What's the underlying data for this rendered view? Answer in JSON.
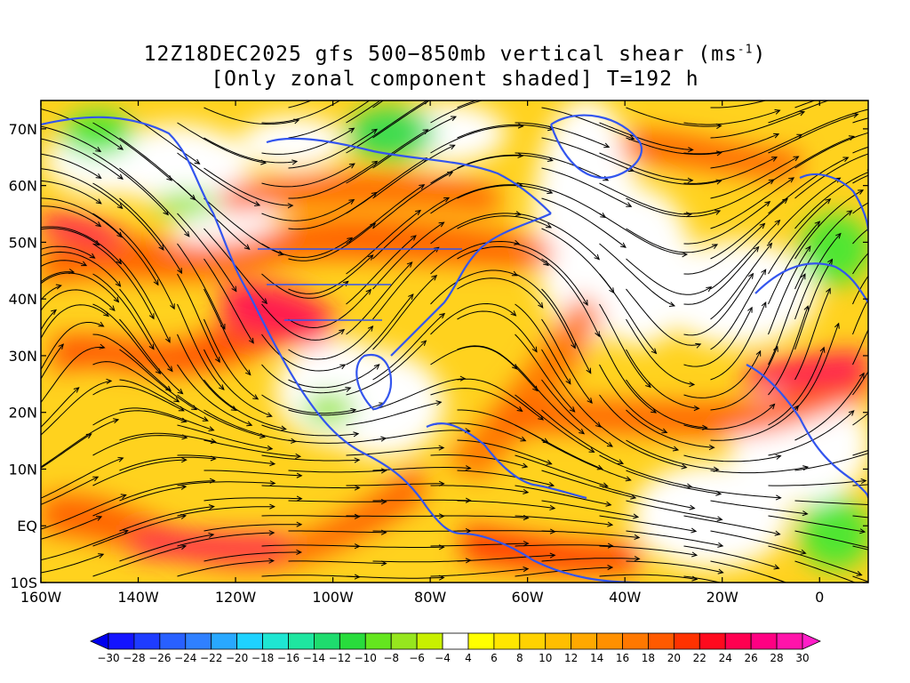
{
  "title": {
    "line1_prefix": "12Z18DEC2025 gfs 500−850mb vertical shear (ms",
    "line1_unit_exp": "-1",
    "line1_suffix": ")",
    "line2": "[Only zonal component shaded] T=192 h"
  },
  "map": {
    "lon_range": [
      -160,
      10
    ],
    "lat_range": [
      -10,
      75
    ],
    "lat_labels": [
      "70N",
      "60N",
      "50N",
      "40N",
      "30N",
      "20N",
      "10N",
      "EQ",
      "10S"
    ],
    "lon_labels": [
      "160W",
      "140W",
      "120W",
      "100W",
      "80W",
      "60W",
      "40W",
      "20W",
      "0"
    ],
    "projection": "cylindrical equidistant",
    "coastline_color": "#3355ee"
  },
  "colorbar": {
    "levels": [
      -30,
      -28,
      -26,
      -24,
      -22,
      -20,
      -18,
      -16,
      -14,
      -12,
      -10,
      -8,
      -6,
      -4,
      4,
      6,
      8,
      10,
      12,
      14,
      16,
      18,
      20,
      22,
      24,
      26,
      28,
      30
    ],
    "colors": [
      "#1414ff",
      "#1e3cff",
      "#2860ff",
      "#2f80ff",
      "#28a8ff",
      "#1ed2ff",
      "#1ee6d2",
      "#1ee6a0",
      "#1edc6e",
      "#28dc3c",
      "#64e61e",
      "#96e61e",
      "#c8f000",
      "#ffffff",
      "#ffff00",
      "#ffe600",
      "#ffd200",
      "#ffbe00",
      "#ffa800",
      "#ff9000",
      "#ff7800",
      "#ff5a00",
      "#ff3200",
      "#ff0a1e",
      "#ff0050",
      "#ff0082",
      "#ff14aa"
    ],
    "under_color": "#0000ee",
    "over_color": "#ff1ec8"
  }
}
